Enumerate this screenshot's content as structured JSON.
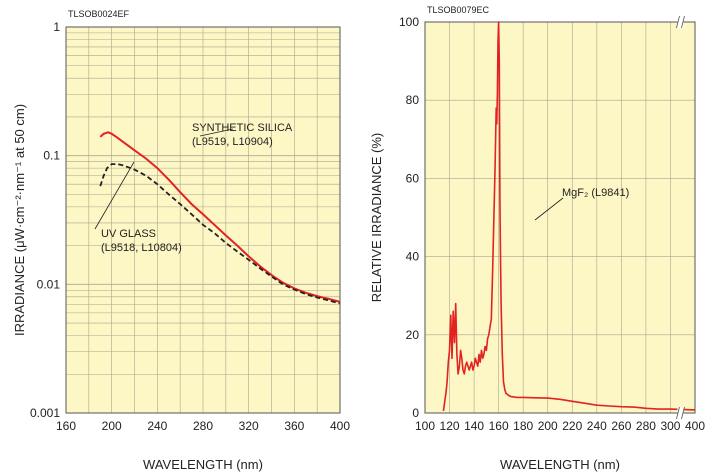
{
  "colors": {
    "plot_bg": "#fdf7c6",
    "grid": "#a9a58f",
    "frame": "#555555",
    "red": "#e32222",
    "black": "#222222"
  },
  "chart_data": [
    {
      "id": "left",
      "type": "line",
      "code": "TLSOB0024EF",
      "xlabel": "WAVELENGTH (nm)",
      "ylabel": "IRRADIANCE (μW·cm⁻²·nm⁻¹ at 50 cm)",
      "xlim": [
        160,
        400
      ],
      "ylim": [
        0.001,
        1
      ],
      "yscale": "log",
      "grid": true,
      "x_ticks": [
        "160",
        "200",
        "240",
        "280",
        "320",
        "360",
        "400"
      ],
      "y_ticks": [
        "0.001",
        "0.01",
        "0.1",
        "1"
      ],
      "series": [
        {
          "name": "SYNTHETIC SILICA",
          "sublabel": "(L9519, L10904)",
          "style": "solid",
          "color": "#e32222",
          "x": [
            190,
            193,
            197,
            200,
            205,
            210,
            220,
            230,
            240,
            250,
            260,
            270,
            280,
            290,
            300,
            310,
            320,
            330,
            340,
            350,
            360,
            370,
            380,
            390,
            400
          ],
          "y": [
            0.14,
            0.148,
            0.152,
            0.148,
            0.138,
            0.128,
            0.11,
            0.095,
            0.08,
            0.065,
            0.052,
            0.042,
            0.035,
            0.029,
            0.024,
            0.02,
            0.0165,
            0.0138,
            0.0118,
            0.0103,
            0.0093,
            0.0086,
            0.0081,
            0.0077,
            0.0073
          ]
        },
        {
          "name": "UV GLASS",
          "sublabel": "(L9518, L10804)",
          "style": "dashed",
          "color": "#222222",
          "x": [
            190,
            193,
            196,
            200,
            205,
            210,
            220,
            230,
            240,
            250,
            260,
            270,
            280,
            290,
            300,
            310,
            320,
            330,
            340,
            350,
            360,
            370,
            380,
            390,
            400
          ],
          "y": [
            0.058,
            0.07,
            0.08,
            0.086,
            0.086,
            0.084,
            0.078,
            0.07,
            0.06,
            0.05,
            0.042,
            0.035,
            0.029,
            0.025,
            0.021,
            0.018,
            0.0155,
            0.0133,
            0.0115,
            0.01,
            0.0091,
            0.0084,
            0.0079,
            0.0075,
            0.0071
          ]
        }
      ]
    },
    {
      "id": "right",
      "type": "line",
      "code": "TLSOB0079EC",
      "xlabel": "WAVELENGTH (nm)",
      "ylabel": "RELATIVE IRRADIANCE (%)",
      "xlim": [
        100,
        400
      ],
      "ylim": [
        0,
        100
      ],
      "yscale": "linear",
      "grid": true,
      "x_ticks": [
        "100",
        "120",
        "140",
        "160",
        "180",
        "200",
        "220",
        "240",
        "260",
        "280",
        "300",
        "400"
      ],
      "y_ticks": [
        "0",
        "20",
        "40",
        "60",
        "80",
        "100"
      ],
      "series": [
        {
          "name": "MgF₂ (L9841)",
          "style": "solid",
          "color": "#e32222",
          "x": [
            115,
            117,
            118,
            119,
            120,
            121,
            122,
            123,
            124,
            125,
            126,
            127,
            128,
            129,
            130,
            131,
            132,
            133,
            134,
            135,
            136,
            137,
            138,
            139,
            140,
            141,
            142,
            143,
            144,
            145,
            146,
            147,
            148,
            149,
            150,
            151,
            152,
            153,
            154,
            155,
            156,
            157,
            158,
            158.5,
            159,
            159.5,
            160,
            160.5,
            161,
            161.5,
            162,
            163,
            164,
            165,
            166,
            167,
            168,
            170,
            175,
            180,
            190,
            200,
            210,
            220,
            230,
            240,
            250,
            260,
            270,
            280,
            290,
            300,
            400
          ],
          "y": [
            0.5,
            5,
            8,
            13,
            16,
            25,
            14,
            26,
            18,
            28,
            15,
            10,
            12,
            16,
            14,
            11,
            10,
            12,
            13,
            12,
            11,
            12,
            13,
            11,
            12,
            14,
            13,
            12,
            15,
            13,
            16,
            14,
            15,
            17,
            16,
            19,
            20,
            22,
            24,
            35,
            48,
            62,
            78,
            74,
            82,
            95,
            100,
            90,
            55,
            40,
            28,
            15,
            8,
            6,
            5,
            4.8,
            4.5,
            4.2,
            4,
            4,
            3.9,
            3.8,
            3.5,
            3,
            2.5,
            2,
            1.8,
            1.6,
            1.5,
            1.2,
            1,
            1,
            0.8
          ]
        }
      ]
    }
  ]
}
